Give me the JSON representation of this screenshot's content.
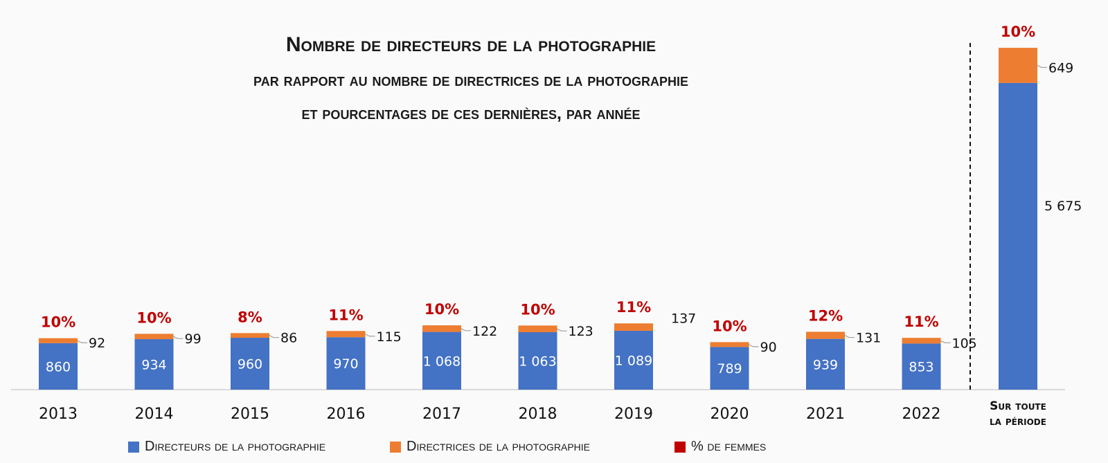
{
  "title": {
    "line1": "Nombre de directeurs de la photographie",
    "line2": "par rapport au nombre de directrices de la photographie",
    "line3": "et pourcentages de ces dernières, par année"
  },
  "colors": {
    "men": "#4472c4",
    "women": "#ed7d31",
    "pct": "#c00000"
  },
  "legend": {
    "men": "Directeurs de la photographie",
    "women": "Directrices de la photographie",
    "pct": "% de femmes"
  },
  "chart_data": {
    "type": "bar",
    "stacked": true,
    "categories": [
      "2013",
      "2014",
      "2015",
      "2016",
      "2017",
      "2018",
      "2019",
      "2020",
      "2021",
      "2022",
      "Sur toute la période"
    ],
    "series": [
      {
        "name": "Directeurs de la photographie",
        "values": [
          860,
          934,
          960,
          970,
          1068,
          1063,
          1089,
          789,
          939,
          853,
          5675
        ],
        "labels": [
          "860",
          "934",
          "960",
          "970",
          "1 068",
          "1 063",
          "1 089",
          "789",
          "939",
          "853",
          "5 675"
        ]
      },
      {
        "name": "Directrices de la photographie",
        "values": [
          92,
          99,
          86,
          115,
          122,
          123,
          137,
          90,
          131,
          105,
          649
        ],
        "labels": [
          "92",
          "99",
          "86",
          "115",
          "122",
          "123",
          "137",
          "90",
          "131",
          "105",
          "649"
        ]
      }
    ],
    "pct_label": "% de femmes",
    "pct_labels": [
      "10%",
      "10%",
      "8%",
      "11%",
      "10%",
      "10%",
      "11%",
      "10%",
      "12%",
      "11%",
      "10%"
    ],
    "separator_after": "2022",
    "legend_position": "bottom",
    "grid": false
  }
}
